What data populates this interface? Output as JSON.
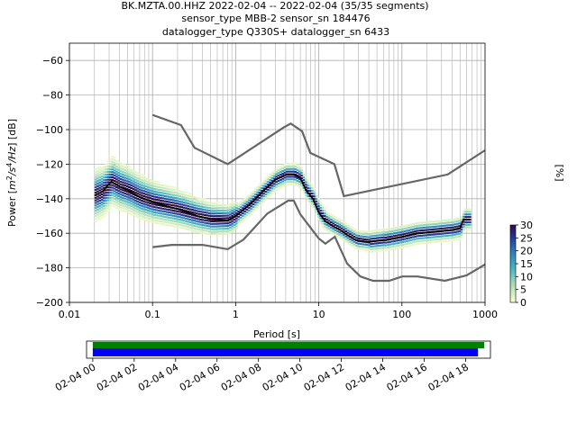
{
  "chart_data": {
    "type": "heatmap",
    "title_lines": [
      "BK.MZTA.00.HHZ   2022-02-04 -- 2022-02-04  (35/35 segments)",
      "sensor_type MBB-2 sensor_sn 184476",
      "datalogger_type Q330S+ datalogger_sn 6433"
    ],
    "xlabel": "Period [s]",
    "ylabel_parts": [
      "Power [",
      "m",
      "2",
      "/s",
      "4",
      "/Hz",
      "] [dB]"
    ],
    "x_scale": "log",
    "xlim": [
      0.01,
      1000
    ],
    "ylim": [
      -200,
      -50
    ],
    "x_ticks": [
      {
        "v": 0.01,
        "label": "0.01"
      },
      {
        "v": 0.1,
        "label": "0.1"
      },
      {
        "v": 1,
        "label": "1"
      },
      {
        "v": 10,
        "label": "10"
      },
      {
        "v": 100,
        "label": "100"
      },
      {
        "v": 1000,
        "label": "1000"
      }
    ],
    "y_ticks": [
      {
        "v": -60,
        "label": "−60"
      },
      {
        "v": -80,
        "label": "−80"
      },
      {
        "v": -100,
        "label": "−100"
      },
      {
        "v": -120,
        "label": "−120"
      },
      {
        "v": -140,
        "label": "−140"
      },
      {
        "v": -160,
        "label": "−160"
      },
      {
        "v": -180,
        "label": "−180"
      },
      {
        "v": -200,
        "label": "−200"
      }
    ],
    "grid": true,
    "noise_models": {
      "high": [
        [
          0.1,
          -91.5
        ],
        [
          0.22,
          -97.4
        ],
        [
          0.32,
          -110.5
        ],
        [
          0.8,
          -120
        ],
        [
          3.8,
          -98.7
        ],
        [
          4.6,
          -96.5
        ],
        [
          6.3,
          -101
        ],
        [
          7.9,
          -113.5
        ],
        [
          15.4,
          -120
        ],
        [
          20,
          -138.5
        ],
        [
          354.8,
          -126
        ],
        [
          1000,
          -112
        ]
      ],
      "low": [
        [
          0.1,
          -168
        ],
        [
          0.17,
          -166.7
        ],
        [
          0.4,
          -166.7
        ],
        [
          0.8,
          -169.2
        ],
        [
          1.24,
          -163.7
        ],
        [
          2.4,
          -148.6
        ],
        [
          4.3,
          -141.1
        ],
        [
          5.0,
          -141.1
        ],
        [
          6.0,
          -149
        ],
        [
          10,
          -163
        ],
        [
          12,
          -166
        ],
        [
          15.6,
          -162
        ],
        [
          21.9,
          -177.5
        ],
        [
          31.6,
          -185
        ],
        [
          45,
          -187.5
        ],
        [
          70,
          -187.5
        ],
        [
          101,
          -185
        ],
        [
          154,
          -185
        ],
        [
          328,
          -187.5
        ],
        [
          600,
          -184.4
        ],
        [
          1000,
          -178
        ]
      ]
    },
    "mean_curve": [
      [
        0.02,
        -138
      ],
      [
        0.025,
        -136
      ],
      [
        0.028,
        -133
      ],
      [
        0.032,
        -130
      ],
      [
        0.04,
        -133
      ],
      [
        0.05,
        -135
      ],
      [
        0.07,
        -139
      ],
      [
        0.1,
        -142
      ],
      [
        0.2,
        -146
      ],
      [
        0.35,
        -150
      ],
      [
        0.5,
        -152
      ],
      [
        0.8,
        -152.5
      ],
      [
        1.0,
        -150
      ],
      [
        1.5,
        -143
      ],
      [
        2.2,
        -135
      ],
      [
        3.0,
        -129
      ],
      [
        4.0,
        -126
      ],
      [
        5.0,
        -126
      ],
      [
        6.0,
        -128
      ],
      [
        7.0,
        -135
      ],
      [
        8.5,
        -140
      ],
      [
        10,
        -148
      ],
      [
        12,
        -153
      ],
      [
        15,
        -156
      ],
      [
        18,
        -158
      ],
      [
        22,
        -161
      ],
      [
        28,
        -164
      ],
      [
        40,
        -165
      ],
      [
        60,
        -164
      ],
      [
        100,
        -162
      ],
      [
        150,
        -160
      ],
      [
        250,
        -159
      ],
      [
        400,
        -158
      ],
      [
        500,
        -157
      ],
      [
        550,
        -152
      ],
      [
        650,
        -152
      ]
    ],
    "colorbar": {
      "label": "[%]",
      "range": [
        0,
        30
      ],
      "ticks": [
        {
          "v": 0,
          "label": "0"
        },
        {
          "v": 5,
          "label": "5"
        },
        {
          "v": 10,
          "label": "10"
        },
        {
          "v": 15,
          "label": "15"
        },
        {
          "v": 20,
          "label": "20"
        },
        {
          "v": 25,
          "label": "25"
        },
        {
          "v": 30,
          "label": "30"
        }
      ]
    },
    "timeline": {
      "range_hours": [
        -0.3,
        19.2
      ],
      "data_coverage_hours": [
        0,
        18.9
      ],
      "gap_coverage_hours": [
        0,
        18.6
      ],
      "coverage_colors": [
        "#008000",
        "#0000ff"
      ],
      "ticks": [
        {
          "h": 0,
          "label": "02-04 00"
        },
        {
          "h": 2,
          "label": "02-04 02"
        },
        {
          "h": 4,
          "label": "02-04 04"
        },
        {
          "h": 6,
          "label": "02-04 06"
        },
        {
          "h": 8,
          "label": "02-04 08"
        },
        {
          "h": 10,
          "label": "02-04 10"
        },
        {
          "h": 12,
          "label": "02-04 12"
        },
        {
          "h": 14,
          "label": "02-04 14"
        },
        {
          "h": 16,
          "label": "02-04 16"
        },
        {
          "h": 18,
          "label": "02-04 18"
        }
      ]
    }
  }
}
